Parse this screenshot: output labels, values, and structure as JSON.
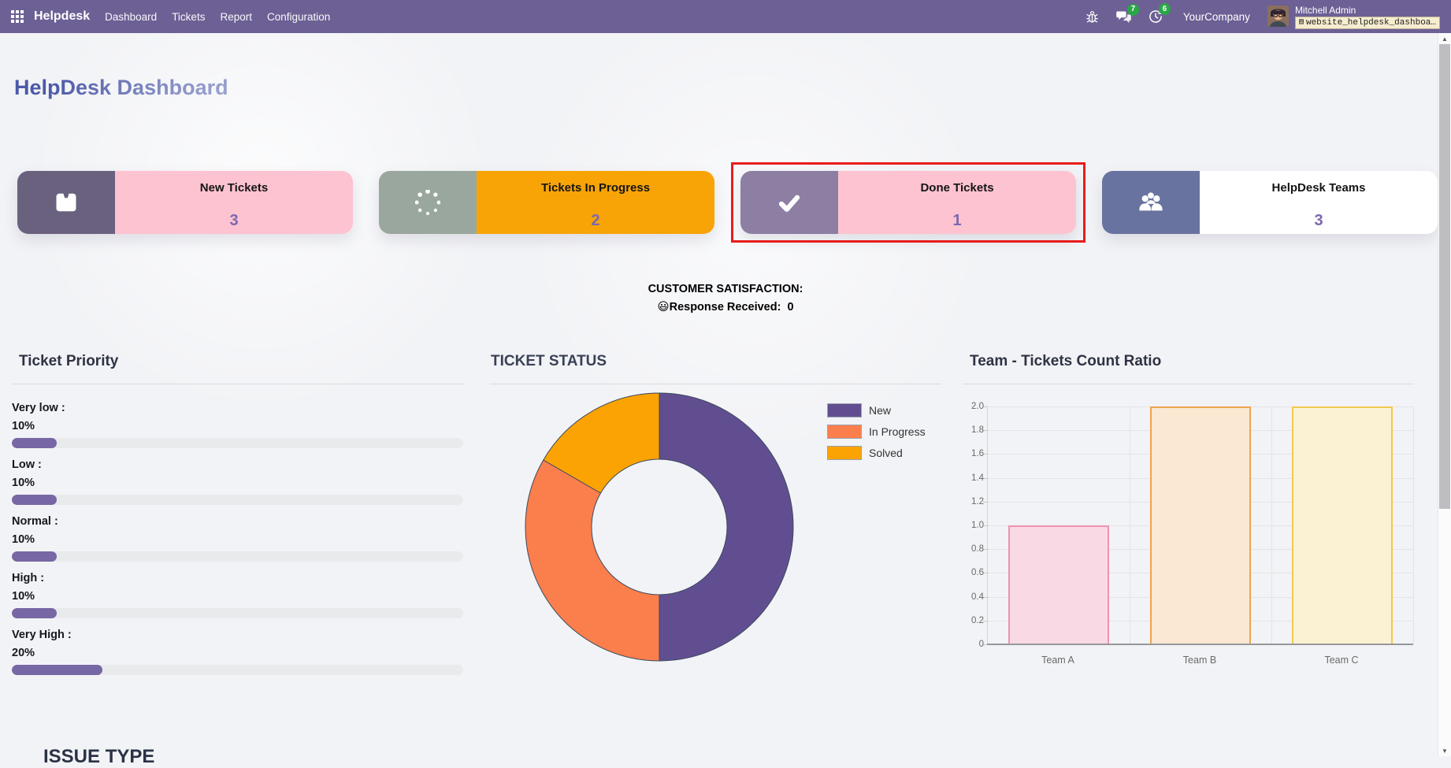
{
  "navbar": {
    "brand": "Helpdesk",
    "menu": [
      "Dashboard",
      "Tickets",
      "Report",
      "Configuration"
    ],
    "messages_badge": "7",
    "activities_badge": "6",
    "company": "YourCompany",
    "user_name": "Mitchell Admin",
    "database": "website_helpdesk_dashboa…"
  },
  "page": {
    "title": "HelpDesk Dashboard",
    "bottom_clipped_text": "ISSUE TYPE"
  },
  "cards": [
    {
      "label": "New Tickets",
      "count": "3",
      "icon": "inbox-icon"
    },
    {
      "label": "Tickets In Progress",
      "count": "2",
      "icon": "spinner-icon"
    },
    {
      "label": "Done Tickets",
      "count": "1",
      "icon": "check-icon",
      "highlighted": true
    },
    {
      "label": "HelpDesk Teams",
      "count": "3",
      "icon": "users-icon"
    }
  ],
  "satisfaction": {
    "title": "CUSTOMER SATISFACTION:",
    "emoji": "😃",
    "response_label": "Response Received:",
    "response_value": "0"
  },
  "chart_data": [
    {
      "type": "pie",
      "donut": true,
      "title": "TICKET STATUS",
      "labels": [
        "New",
        "In Progress",
        "Solved"
      ],
      "values": [
        3,
        2,
        1
      ],
      "percentages": [
        50,
        33.3,
        16.7
      ],
      "colors": [
        "#614e90",
        "#fb7e4d",
        "#fba303"
      ],
      "border_color": "#3b4a5f",
      "legend_position": "right"
    },
    {
      "type": "bar",
      "title": "Team - Tickets Count Ratio",
      "categories": [
        "Team A",
        "Team B",
        "Team C"
      ],
      "values": [
        1.0,
        2.0,
        2.0
      ],
      "ylim": [
        0,
        2.0
      ],
      "ytick_step": 0.2,
      "grid": true,
      "bar_fill": [
        "#f9d9e3",
        "#fbe8d2",
        "#fbf2d3"
      ],
      "bar_border": [
        "#ee93af",
        "#efa352",
        "#f2c94e"
      ]
    },
    {
      "type": "bar",
      "title": "Ticket Priority",
      "categories": [
        "Very low",
        "Low",
        "Normal",
        "High",
        "Very High"
      ],
      "values": [
        10,
        10,
        10,
        10,
        20
      ],
      "unit": "%",
      "orientation": "horizontal-progress"
    }
  ],
  "colors": {
    "navbar_bg": "#6d6095",
    "page_bg": "#f2f3f6",
    "title_color": "#4c59a8",
    "pink": "#fdc3d1",
    "orange": "#f8a407",
    "accent1": "#6a617f",
    "accent2": "#9aa79e",
    "accent3": "#8c7fa3",
    "accent4": "#68739f",
    "count_color": "#7b68ae",
    "highlight_red": "#e81c1c",
    "progress_fill": "#7767a4",
    "progress_track": "#e9eaec",
    "badge_green": "#28a745",
    "db_bg": "#f6edcf"
  }
}
